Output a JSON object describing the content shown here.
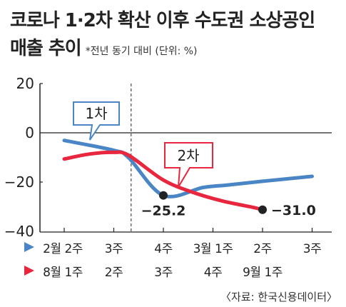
{
  "title": {
    "line1": "코로나 1·2차 확산 이후 수도권 소상공인",
    "line2": "매출 추이",
    "note": "*전년 동기 대비 (단위: %)"
  },
  "source": "〈자료: 한국신용데이터〉",
  "colors": {
    "blue": "#4a86c5",
    "red": "#e8263d",
    "grid": "#cccccc",
    "axis": "#222222"
  },
  "chart_data": {
    "type": "line",
    "ylim": [
      -40,
      20
    ],
    "yticks": [
      "20",
      "0",
      "−20",
      "−40"
    ],
    "x_categories_first_wave": [
      "2월 2주",
      "3주",
      "4주",
      "3월 1주",
      "2주",
      "3주"
    ],
    "x_categories_second_wave": [
      "8월 1주",
      "2주",
      "3주",
      "4주",
      "9월 1주"
    ],
    "series": [
      {
        "name": "1차",
        "color": "#4a86c5",
        "points": [
          [
            0,
            -3
          ],
          [
            1,
            -7
          ],
          [
            1.3,
            -10
          ],
          [
            2,
            -25.2
          ],
          [
            2.8,
            -22
          ],
          [
            3.3,
            -21
          ],
          [
            4,
            -19.5
          ],
          [
            5,
            -17.5
          ]
        ]
      },
      {
        "name": "2차",
        "color": "#e8263d",
        "points": [
          [
            0,
            -10.5
          ],
          [
            0.5,
            -8.5
          ],
          [
            1,
            -7.8
          ],
          [
            1.3,
            -9
          ],
          [
            2,
            -19
          ],
          [
            2.6,
            -24
          ],
          [
            3.2,
            -27.5
          ],
          [
            3.8,
            -30
          ],
          [
            4,
            -31
          ]
        ]
      }
    ],
    "annotations": [
      {
        "label": "−25.2",
        "x": 2,
        "y": -25.2
      },
      {
        "label": "−31.0",
        "x": 4,
        "y": -31.0
      }
    ],
    "divider_x": 1.35,
    "callouts": [
      "1차",
      "2차"
    ]
  }
}
